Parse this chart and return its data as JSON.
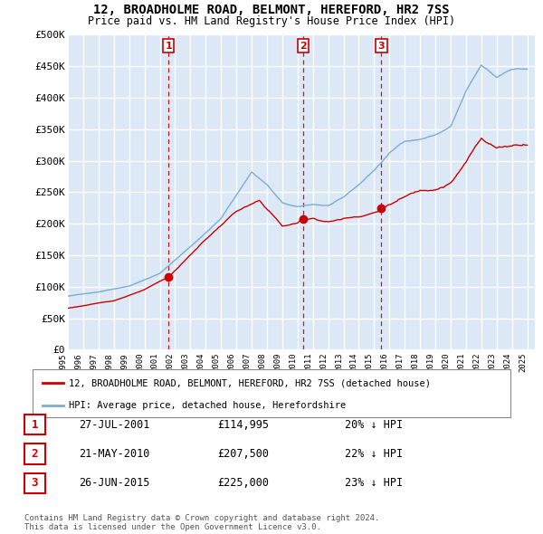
{
  "title": "12, BROADHOLME ROAD, BELMONT, HEREFORD, HR2 7SS",
  "subtitle": "Price paid vs. HM Land Registry's House Price Index (HPI)",
  "ylabel_ticks": [
    0,
    50000,
    100000,
    150000,
    200000,
    250000,
    300000,
    350000,
    400000,
    450000,
    500000
  ],
  "ylabel_labels": [
    "£0",
    "£50K",
    "£100K",
    "£150K",
    "£200K",
    "£250K",
    "£300K",
    "£350K",
    "£400K",
    "£450K",
    "£500K"
  ],
  "ylim": [
    0,
    500000
  ],
  "xlim_start": 1995.0,
  "xlim_end": 2025.5,
  "sales": [
    {
      "date_num": 2001.57,
      "price": 114995,
      "label": "1"
    },
    {
      "date_num": 2010.38,
      "price": 207500,
      "label": "2"
    },
    {
      "date_num": 2015.48,
      "price": 225000,
      "label": "3"
    }
  ],
  "sale_color": "#cc0000",
  "hpi_color": "#7aadd4",
  "legend_property": "12, BROADHOLME ROAD, BELMONT, HEREFORD, HR2 7SS (detached house)",
  "legend_hpi": "HPI: Average price, detached house, Herefordshire",
  "table_rows": [
    {
      "num": "1",
      "date": "27-JUL-2001",
      "price": "£114,995",
      "pct": "20% ↓ HPI"
    },
    {
      "num": "2",
      "date": "21-MAY-2010",
      "price": "£207,500",
      "pct": "22% ↓ HPI"
    },
    {
      "num": "3",
      "date": "26-JUN-2015",
      "price": "£225,000",
      "pct": "23% ↓ HPI"
    }
  ],
  "footer": "Contains HM Land Registry data © Crown copyright and database right 2024.\nThis data is licensed under the Open Government Licence v3.0.",
  "background_color": "#dce8f5",
  "grid_color": "#ffffff",
  "marker_box_color": "#cc0000"
}
